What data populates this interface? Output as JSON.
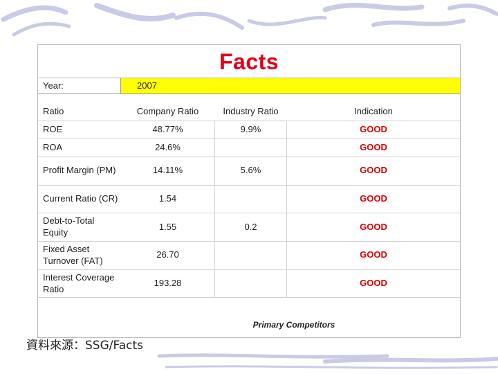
{
  "title": "Facts",
  "year": {
    "label": "Year:",
    "value": "2007"
  },
  "headers": {
    "ratio": "Ratio",
    "company": "Company Ratio",
    "industry": "Industry Ratio",
    "indication": "Indication"
  },
  "rows": [
    {
      "ratio": "ROE",
      "company": "48.77%",
      "industry": "9.9%",
      "indication": "GOOD"
    },
    {
      "ratio": "ROA",
      "company": "24.6%",
      "industry": "",
      "indication": "GOOD"
    },
    {
      "ratio": "Profit Margin (PM)",
      "company": "14.11%",
      "industry": "5.6%",
      "indication": "GOOD"
    },
    {
      "ratio": "Current Ratio (CR)",
      "company": "1.54",
      "industry": "",
      "indication": "GOOD"
    },
    {
      "ratio": "Debt-to-Total Equity",
      "company": "1.55",
      "industry": "0.2",
      "indication": "GOOD"
    },
    {
      "ratio": "Fixed Asset Turnover (FAT)",
      "company": "26.70",
      "industry": "",
      "indication": "GOOD"
    },
    {
      "ratio": "Interest Coverage Ratio",
      "company": "193.28",
      "industry": "",
      "indication": "GOOD"
    }
  ],
  "footnote": "Primary Competitors",
  "source": "資料來源：SSG/Facts",
  "colors": {
    "title": "#e0001b",
    "year_band": "#ffff00",
    "indication": "#d90000",
    "decoration": "#c9cbe6"
  }
}
